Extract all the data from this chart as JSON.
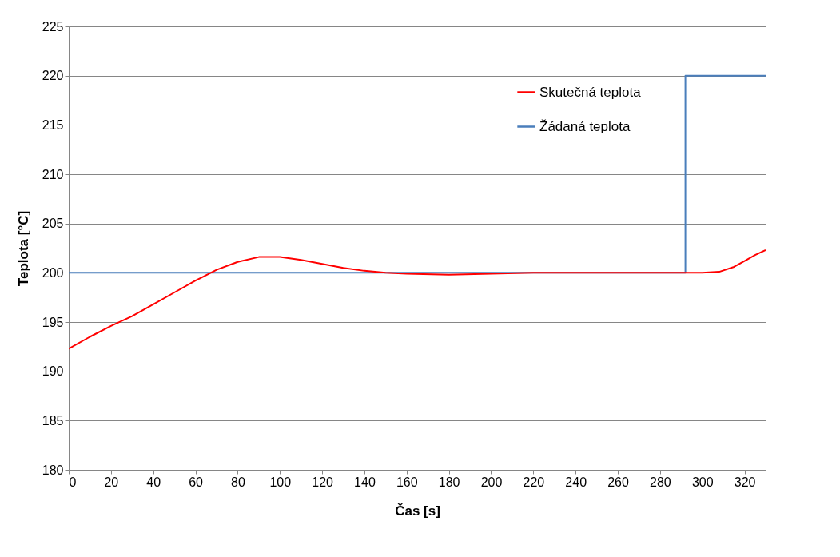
{
  "chart_data": {
    "type": "line",
    "xlabel": "Čas [s]",
    "ylabel": "Teplota [°C]",
    "xlim": [
      0,
      330
    ],
    "xticks": [
      0,
      20,
      40,
      60,
      80,
      100,
      120,
      140,
      160,
      180,
      200,
      220,
      240,
      260,
      280,
      300,
      320
    ],
    "ylim": [
      180,
      225
    ],
    "yticks": [
      180,
      185,
      190,
      195,
      200,
      205,
      210,
      215,
      220,
      225
    ],
    "grid": "y",
    "legend": "top right",
    "series": [
      {
        "name": "Skutečná teplota",
        "color": "#ff0000",
        "type": "line",
        "x": [
          0,
          10,
          20,
          30,
          40,
          50,
          60,
          70,
          80,
          90,
          100,
          110,
          120,
          130,
          140,
          150,
          160,
          180,
          200,
          220,
          240,
          260,
          280,
          290,
          300,
          308,
          315,
          320,
          325,
          330
        ],
        "values": [
          192.3,
          193.5,
          194.6,
          195.6,
          196.8,
          198,
          199.2,
          200.3,
          201.1,
          201.6,
          201.6,
          201.3,
          200.9,
          200.5,
          200.2,
          200,
          199.9,
          199.8,
          199.9,
          200,
          200,
          200,
          200,
          200,
          200,
          200.1,
          200.6,
          201.2,
          201.8,
          202.3
        ]
      },
      {
        "name": "Žádaná teplota",
        "color": "#4a7ebb",
        "type": "step",
        "x": [
          0,
          292,
          330
        ],
        "values": [
          200,
          220,
          220
        ]
      }
    ]
  }
}
